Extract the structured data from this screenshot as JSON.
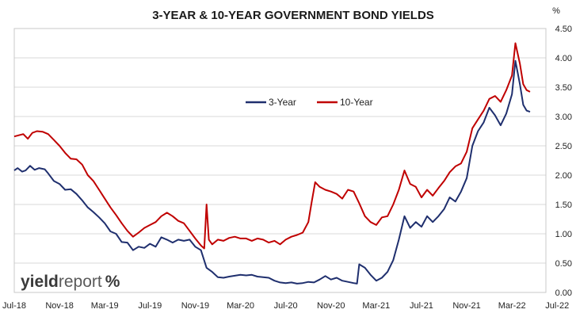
{
  "chart_data": {
    "type": "line",
    "title": "3-YEAR & 10-YEAR GOVERNMENT BOND YIELDS",
    "ylabel": "%",
    "xlabel": "",
    "ylim": [
      0,
      4.5
    ],
    "y_ticks": [
      "0.00",
      "0.50",
      "1.00",
      "1.50",
      "2.00",
      "2.50",
      "3.00",
      "3.50",
      "4.00",
      "4.50"
    ],
    "x_ticks": [
      "Jul-18",
      "Nov-18",
      "Mar-19",
      "Jul-19",
      "Nov-19",
      "Mar-20",
      "Jul-20",
      "Nov-20",
      "Mar-21",
      "Jul-21",
      "Nov-21",
      "Mar-22",
      "Jul-22"
    ],
    "grid": "horizontal",
    "legend_position": "top-center",
    "logo": "yieldreport %",
    "series": [
      {
        "name": "3-Year",
        "color": "#1f2f6e",
        "points": [
          [
            0,
            2.08
          ],
          [
            0.3,
            2.12
          ],
          [
            0.7,
            2.06
          ],
          [
            1.0,
            2.08
          ],
          [
            1.4,
            2.16
          ],
          [
            1.8,
            2.09
          ],
          [
            2.2,
            2.12
          ],
          [
            2.7,
            2.1
          ],
          [
            3.0,
            2.03
          ],
          [
            3.5,
            1.9
          ],
          [
            4.0,
            1.85
          ],
          [
            4.5,
            1.75
          ],
          [
            5.0,
            1.76
          ],
          [
            5.5,
            1.68
          ],
          [
            6.0,
            1.57
          ],
          [
            6.5,
            1.45
          ],
          [
            7.0,
            1.37
          ],
          [
            7.5,
            1.28
          ],
          [
            8.0,
            1.18
          ],
          [
            8.5,
            1.04
          ],
          [
            9.0,
            1.0
          ],
          [
            9.5,
            0.86
          ],
          [
            10.0,
            0.85
          ],
          [
            10.5,
            0.72
          ],
          [
            11.0,
            0.78
          ],
          [
            11.5,
            0.76
          ],
          [
            12.0,
            0.83
          ],
          [
            12.5,
            0.78
          ],
          [
            13.0,
            0.94
          ],
          [
            13.5,
            0.9
          ],
          [
            14.0,
            0.85
          ],
          [
            14.5,
            0.9
          ],
          [
            15.0,
            0.88
          ],
          [
            15.5,
            0.9
          ],
          [
            16.0,
            0.78
          ],
          [
            16.5,
            0.72
          ],
          [
            17.0,
            0.42
          ],
          [
            17.5,
            0.35
          ],
          [
            18.0,
            0.26
          ],
          [
            18.5,
            0.25
          ],
          [
            19.0,
            0.27
          ],
          [
            20.0,
            0.3
          ],
          [
            20.5,
            0.29
          ],
          [
            21.0,
            0.3
          ],
          [
            21.5,
            0.27
          ],
          [
            22.0,
            0.26
          ],
          [
            22.5,
            0.25
          ],
          [
            23.0,
            0.2
          ],
          [
            23.5,
            0.17
          ],
          [
            24.0,
            0.16
          ],
          [
            24.5,
            0.17
          ],
          [
            25.0,
            0.15
          ],
          [
            25.5,
            0.16
          ],
          [
            26.0,
            0.18
          ],
          [
            26.5,
            0.17
          ],
          [
            27.0,
            0.22
          ],
          [
            27.5,
            0.28
          ],
          [
            28.0,
            0.22
          ],
          [
            28.5,
            0.25
          ],
          [
            29.0,
            0.2
          ],
          [
            29.5,
            0.18
          ],
          [
            30.0,
            0.16
          ],
          [
            30.3,
            0.15
          ],
          [
            30.5,
            0.48
          ],
          [
            31.0,
            0.42
          ],
          [
            31.5,
            0.3
          ],
          [
            32.0,
            0.2
          ],
          [
            32.5,
            0.25
          ],
          [
            33.0,
            0.35
          ],
          [
            33.5,
            0.55
          ],
          [
            34.0,
            0.9
          ],
          [
            34.5,
            1.3
          ],
          [
            35.0,
            1.1
          ],
          [
            35.5,
            1.2
          ],
          [
            36.0,
            1.12
          ],
          [
            36.5,
            1.3
          ],
          [
            37.0,
            1.2
          ],
          [
            37.5,
            1.3
          ],
          [
            38.0,
            1.42
          ],
          [
            38.5,
            1.62
          ],
          [
            39.0,
            1.55
          ],
          [
            39.5,
            1.72
          ],
          [
            40.0,
            1.95
          ],
          [
            40.5,
            2.5
          ],
          [
            41.0,
            2.75
          ],
          [
            41.5,
            2.9
          ],
          [
            42.0,
            3.15
          ],
          [
            42.5,
            3.02
          ],
          [
            43.0,
            2.85
          ],
          [
            43.5,
            3.05
          ],
          [
            44.0,
            3.38
          ],
          [
            44.3,
            3.95
          ],
          [
            44.7,
            3.55
          ],
          [
            45.0,
            3.2
          ],
          [
            45.3,
            3.1
          ],
          [
            45.6,
            3.08
          ]
        ]
      },
      {
        "name": "10-Year",
        "color": "#c00000",
        "points": [
          [
            0,
            2.66
          ],
          [
            0.4,
            2.68
          ],
          [
            0.8,
            2.7
          ],
          [
            1.2,
            2.62
          ],
          [
            1.6,
            2.72
          ],
          [
            2.0,
            2.75
          ],
          [
            2.5,
            2.74
          ],
          [
            3.0,
            2.7
          ],
          [
            3.5,
            2.6
          ],
          [
            4.0,
            2.5
          ],
          [
            4.5,
            2.38
          ],
          [
            5.0,
            2.28
          ],
          [
            5.5,
            2.27
          ],
          [
            6.0,
            2.18
          ],
          [
            6.5,
            2.0
          ],
          [
            7.0,
            1.9
          ],
          [
            7.5,
            1.75
          ],
          [
            8.0,
            1.6
          ],
          [
            8.5,
            1.45
          ],
          [
            9.0,
            1.32
          ],
          [
            9.5,
            1.18
          ],
          [
            10.0,
            1.05
          ],
          [
            10.5,
            0.95
          ],
          [
            11.0,
            1.02
          ],
          [
            11.5,
            1.1
          ],
          [
            12.0,
            1.15
          ],
          [
            12.5,
            1.2
          ],
          [
            13.0,
            1.3
          ],
          [
            13.5,
            1.36
          ],
          [
            14.0,
            1.3
          ],
          [
            14.5,
            1.22
          ],
          [
            15.0,
            1.18
          ],
          [
            15.5,
            1.05
          ],
          [
            16.0,
            0.92
          ],
          [
            16.5,
            0.8
          ],
          [
            16.8,
            0.75
          ],
          [
            17.0,
            1.5
          ],
          [
            17.2,
            0.9
          ],
          [
            17.5,
            0.82
          ],
          [
            18.0,
            0.9
          ],
          [
            18.5,
            0.88
          ],
          [
            19.0,
            0.93
          ],
          [
            19.5,
            0.95
          ],
          [
            20.0,
            0.92
          ],
          [
            20.5,
            0.92
          ],
          [
            21.0,
            0.88
          ],
          [
            21.5,
            0.92
          ],
          [
            22.0,
            0.9
          ],
          [
            22.5,
            0.85
          ],
          [
            23.0,
            0.88
          ],
          [
            23.5,
            0.82
          ],
          [
            24.0,
            0.9
          ],
          [
            24.5,
            0.95
          ],
          [
            25.0,
            0.98
          ],
          [
            25.5,
            1.02
          ],
          [
            26.0,
            1.2
          ],
          [
            26.3,
            1.55
          ],
          [
            26.6,
            1.88
          ],
          [
            27.0,
            1.8
          ],
          [
            27.5,
            1.75
          ],
          [
            28.0,
            1.72
          ],
          [
            28.5,
            1.68
          ],
          [
            29.0,
            1.6
          ],
          [
            29.5,
            1.75
          ],
          [
            30.0,
            1.72
          ],
          [
            30.5,
            1.52
          ],
          [
            31.0,
            1.3
          ],
          [
            31.5,
            1.2
          ],
          [
            32.0,
            1.15
          ],
          [
            32.5,
            1.28
          ],
          [
            33.0,
            1.3
          ],
          [
            33.5,
            1.5
          ],
          [
            34.0,
            1.75
          ],
          [
            34.5,
            2.08
          ],
          [
            35.0,
            1.85
          ],
          [
            35.5,
            1.8
          ],
          [
            36.0,
            1.62
          ],
          [
            36.5,
            1.75
          ],
          [
            37.0,
            1.65
          ],
          [
            37.5,
            1.78
          ],
          [
            38.0,
            1.9
          ],
          [
            38.5,
            2.05
          ],
          [
            39.0,
            2.15
          ],
          [
            39.5,
            2.2
          ],
          [
            40.0,
            2.4
          ],
          [
            40.5,
            2.8
          ],
          [
            41.0,
            2.95
          ],
          [
            41.5,
            3.1
          ],
          [
            42.0,
            3.3
          ],
          [
            42.5,
            3.35
          ],
          [
            43.0,
            3.25
          ],
          [
            43.5,
            3.45
          ],
          [
            44.0,
            3.7
          ],
          [
            44.3,
            4.25
          ],
          [
            44.7,
            3.9
          ],
          [
            45.0,
            3.55
          ],
          [
            45.3,
            3.45
          ],
          [
            45.6,
            3.42
          ]
        ]
      }
    ]
  }
}
